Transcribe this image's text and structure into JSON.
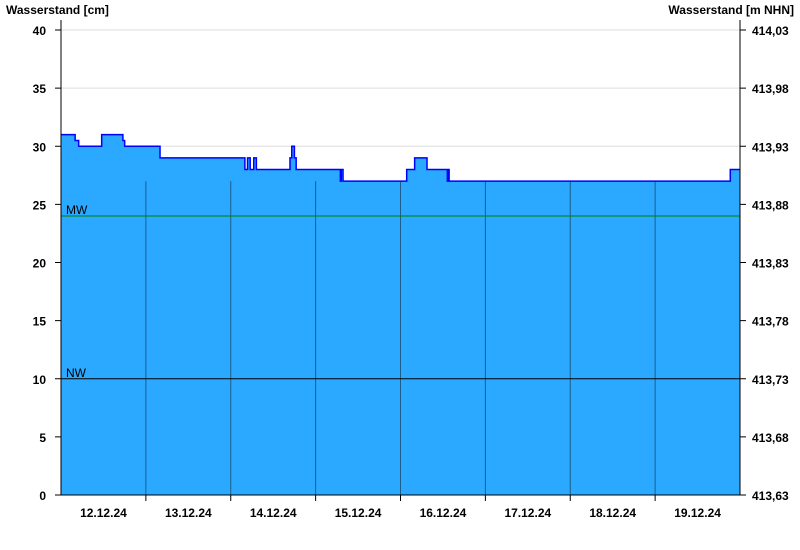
{
  "chart_data": {
    "type": "area",
    "ylabel_left": "Wasserstand [cm]",
    "ylabel_right": "Wasserstand [m NHN]",
    "ylim": [
      0,
      40
    ],
    "yticks": [
      0,
      5,
      10,
      15,
      20,
      25,
      30,
      35,
      40
    ],
    "yticks_right": [
      "413,63",
      "413,68",
      "413,73",
      "413,78",
      "413,83",
      "413,88",
      "413,93",
      "413,98",
      "414,03"
    ],
    "xlim": [
      "12.12.24 00:00",
      "20.12.24 00:00"
    ],
    "xtick_labels": [
      "12.12.24",
      "13.12.24",
      "14.12.24",
      "15.12.24",
      "16.12.24",
      "17.12.24",
      "18.12.24",
      "19.12.24"
    ],
    "grid": true,
    "step": true,
    "colors": {
      "fill": "#2ba8ff",
      "line": "#0000ff",
      "mw": "#008000",
      "nw": "#000000",
      "day_line": "#1d5f8a"
    },
    "reference_lines": [
      {
        "label": "MW",
        "value": 24
      },
      {
        "label": "NW",
        "value": 10
      }
    ],
    "points": [
      [
        "12.12.24 00:00",
        31
      ],
      [
        "12.12.24 04:00",
        30.5
      ],
      [
        "12.12.24 05:00",
        30
      ],
      [
        "12.12.24 11:30",
        31
      ],
      [
        "12.12.24 17:30",
        30.5
      ],
      [
        "12.12.24 18:00",
        30
      ],
      [
        "13.12.24 04:00",
        29
      ],
      [
        "14.12.24 04:00",
        28
      ],
      [
        "14.12.24 04:45",
        29
      ],
      [
        "14.12.24 05:30",
        28
      ],
      [
        "14.12.24 06:30",
        29
      ],
      [
        "14.12.24 07:15",
        28
      ],
      [
        "14.12.24 16:45",
        29
      ],
      [
        "14.12.24 17:15",
        30
      ],
      [
        "14.12.24 18:00",
        29
      ],
      [
        "14.12.24 18:30",
        28
      ],
      [
        "15.12.24 07:00",
        27
      ],
      [
        "15.12.24 07:15",
        28
      ],
      [
        "15.12.24 07:45",
        27
      ],
      [
        "16.12.24 01:45",
        28
      ],
      [
        "16.12.24 04:00",
        29
      ],
      [
        "16.12.24 07:30",
        28
      ],
      [
        "16.12.24 13:15",
        27
      ],
      [
        "16.12.24 13:30",
        28
      ],
      [
        "16.12.24 13:45",
        27
      ],
      [
        "19.12.24 21:15",
        28
      ],
      [
        "20.12.24 00:00",
        28
      ]
    ]
  }
}
